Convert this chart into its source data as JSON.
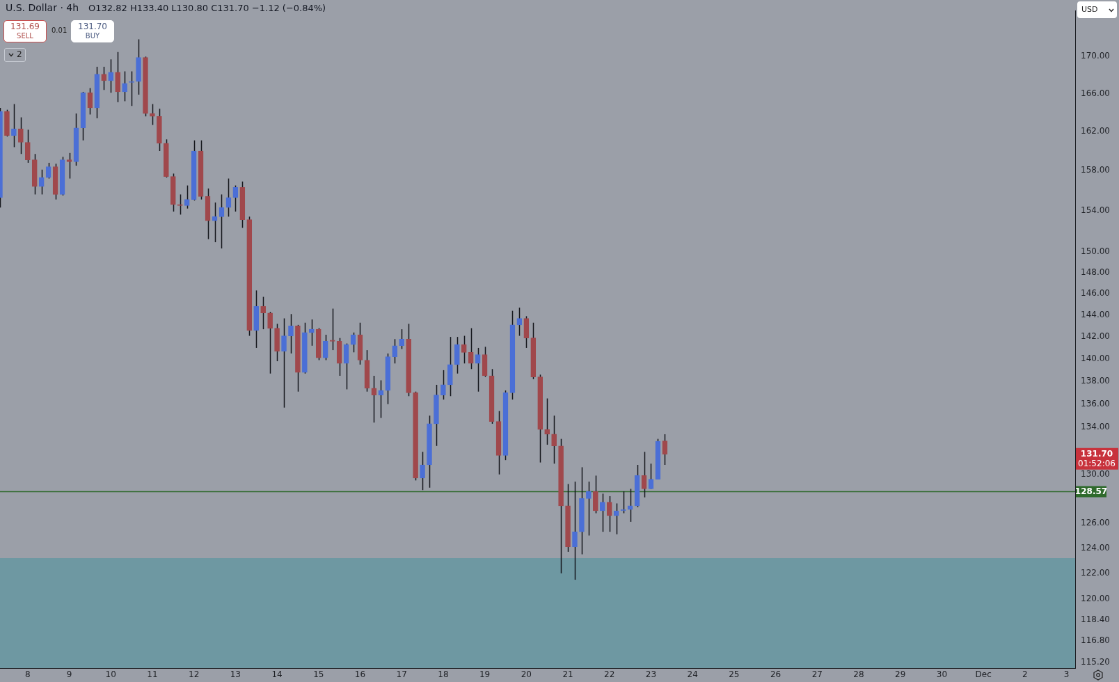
{
  "chart_data": {
    "type": "candlestick",
    "title": "U.S. Dollar · 4h",
    "subtitle": "O132.82 H133.40 L130.80 C131.70 −1.12 (−0.84%)",
    "x": [
      "--11-07T08:00",
      "--11-07T12:00",
      "--11-07T16:00",
      "--11-07T20:00",
      "--11-08T00:00",
      "--11-08T04:00",
      "--11-08T08:00",
      "--11-08T12:00",
      "--11-08T16:00",
      "--11-08T20:00",
      "--11-09T00:00",
      "--11-09T04:00",
      "--11-09T08:00",
      "--11-09T12:00",
      "--11-09T16:00",
      "--11-09T20:00",
      "--11-10T00:00",
      "--11-10T04:00",
      "--11-10T08:00",
      "--11-10T12:00",
      "--11-10T16:00",
      "--11-10T20:00",
      "--11-11T00:00",
      "--11-11T04:00",
      "--11-11T08:00",
      "--11-11T12:00",
      "--11-11T16:00",
      "--11-11T20:00",
      "--11-12T00:00",
      "--11-12T04:00",
      "--11-12T08:00",
      "--11-12T12:00",
      "--11-12T16:00",
      "--11-12T20:00",
      "--11-13T00:00",
      "--11-13T04:00",
      "--11-13T08:00",
      "--11-13T12:00",
      "--11-13T16:00",
      "--11-13T20:00",
      "--11-14T00:00",
      "--11-14T04:00",
      "--11-14T08:00",
      "--11-14T12:00",
      "--11-14T16:00",
      "--11-14T20:00",
      "--11-15T00:00",
      "--11-15T04:00",
      "--11-15T08:00",
      "--11-15T12:00",
      "--11-15T16:00",
      "--11-15T20:00",
      "--11-16T00:00",
      "--11-16T04:00",
      "--11-16T08:00",
      "--11-16T12:00",
      "--11-16T16:00",
      "--11-16T20:00",
      "--11-17T00:00",
      "--11-17T04:00",
      "--11-17T08:00",
      "--11-17T12:00",
      "--11-17T16:00",
      "--11-17T20:00",
      "--11-18T00:00",
      "--11-18T04:00",
      "--11-18T08:00",
      "--11-18T12:00",
      "--11-18T16:00",
      "--11-18T20:00",
      "--11-19T00:00",
      "--11-19T04:00",
      "--11-19T08:00",
      "--11-19T12:00",
      "--11-19T16:00",
      "--11-19T20:00",
      "--11-20T00:00",
      "--11-20T04:00",
      "--11-20T08:00",
      "--11-20T12:00",
      "--11-20T16:00",
      "--11-20T20:00",
      "--11-21T00:00",
      "--11-21T04:00",
      "--11-21T08:00",
      "--11-21T12:00",
      "--11-21T16:00",
      "--11-21T20:00",
      "--11-22T00:00",
      "--11-22T04:00",
      "--11-22T08:00",
      "--11-22T12:00",
      "--11-22T16:00",
      "--11-22T20:00",
      "--11-23T00:00",
      "--11-23T04:00",
      "--11-23T08:00"
    ],
    "ohlc": [
      [
        155.3,
        164.5,
        154.3,
        164.1
      ],
      [
        164.1,
        164.3,
        161.5,
        161.6
      ],
      [
        161.6,
        164.9,
        160.4,
        162.3
      ],
      [
        162.3,
        163.5,
        159.7,
        160.9
      ],
      [
        160.9,
        162.2,
        158.8,
        159.1
      ],
      [
        159.1,
        159.7,
        155.6,
        156.4
      ],
      [
        156.4,
        158.1,
        155.6,
        157.3
      ],
      [
        157.3,
        158.8,
        157.2,
        158.4
      ],
      [
        158.4,
        158.7,
        155.1,
        155.6
      ],
      [
        155.6,
        159.4,
        155.5,
        159.1
      ],
      [
        159.1,
        159.8,
        157.2,
        158.9
      ],
      [
        158.9,
        163.9,
        158.5,
        162.4
      ],
      [
        162.4,
        166.2,
        161.1,
        166.1
      ],
      [
        166.1,
        166.6,
        163.8,
        164.5
      ],
      [
        164.5,
        168.9,
        163.4,
        168.1
      ],
      [
        168.1,
        168.9,
        166.4,
        167.4
      ],
      [
        167.4,
        169.7,
        166.1,
        168.3
      ],
      [
        168.3,
        170.5,
        165.1,
        166.2
      ],
      [
        166.2,
        168.4,
        165.2,
        167.1
      ],
      [
        167.2,
        168.4,
        164.7,
        167.3
      ],
      [
        167.3,
        171.9,
        165.9,
        169.9
      ],
      [
        169.9,
        170.0,
        163.6,
        163.9
      ],
      [
        163.9,
        164.9,
        162.7,
        163.6
      ],
      [
        163.6,
        164.4,
        160.0,
        160.8
      ],
      [
        160.8,
        161.2,
        157.3,
        157.4
      ],
      [
        157.4,
        157.7,
        153.9,
        154.6
      ],
      [
        154.6,
        155.6,
        153.6,
        154.5
      ],
      [
        154.5,
        156.5,
        154.2,
        155.1
      ],
      [
        155.1,
        161.1,
        155.0,
        160.0
      ],
      [
        160.0,
        161.1,
        155.1,
        155.4
      ],
      [
        155.4,
        156.2,
        151.2,
        153.0
      ],
      [
        153.0,
        154.8,
        150.9,
        153.4
      ],
      [
        153.4,
        155.6,
        150.3,
        154.3
      ],
      [
        154.3,
        157.2,
        153.4,
        155.3
      ],
      [
        155.3,
        156.5,
        153.9,
        156.3
      ],
      [
        156.3,
        156.9,
        152.3,
        153.1
      ],
      [
        153.1,
        153.4,
        142.1,
        142.6
      ],
      [
        142.6,
        146.3,
        141.0,
        144.8
      ],
      [
        144.8,
        145.7,
        142.7,
        144.2
      ],
      [
        144.2,
        144.3,
        138.7,
        142.8
      ],
      [
        142.8,
        143.2,
        139.8,
        140.7
      ],
      [
        140.7,
        143.7,
        135.7,
        142.1
      ],
      [
        142.1,
        144.1,
        140.5,
        143.0
      ],
      [
        143.0,
        143.1,
        137.1,
        138.8
      ],
      [
        138.8,
        143.3,
        138.7,
        142.4
      ],
      [
        142.4,
        143.6,
        141.2,
        142.7
      ],
      [
        142.7,
        142.8,
        139.9,
        140.1
      ],
      [
        140.1,
        142.2,
        139.9,
        141.6
      ],
      [
        141.7,
        144.6,
        140.8,
        141.6
      ],
      [
        141.6,
        141.9,
        138.5,
        139.6
      ],
      [
        139.6,
        141.4,
        137.3,
        141.3
      ],
      [
        141.3,
        142.4,
        140.6,
        142.2
      ],
      [
        142.2,
        143.3,
        139.5,
        139.9
      ],
      [
        139.9,
        140.8,
        137.1,
        137.4
      ],
      [
        137.4,
        138.5,
        134.4,
        136.8
      ],
      [
        136.8,
        138.1,
        134.8,
        137.2
      ],
      [
        137.2,
        140.5,
        136.0,
        140.2
      ],
      [
        140.2,
        141.8,
        139.6,
        141.2
      ],
      [
        141.2,
        142.7,
        140.9,
        141.8
      ],
      [
        141.8,
        143.2,
        136.7,
        137.0
      ],
      [
        137.0,
        137.1,
        129.5,
        129.7
      ],
      [
        129.7,
        131.9,
        128.7,
        130.8
      ],
      [
        130.8,
        135.0,
        128.9,
        134.3
      ],
      [
        134.3,
        137.7,
        132.4,
        136.8
      ],
      [
        136.8,
        139.0,
        136.4,
        137.7
      ],
      [
        137.7,
        142.0,
        136.7,
        139.5
      ],
      [
        139.5,
        142.0,
        138.7,
        141.3
      ],
      [
        141.3,
        142.1,
        139.6,
        140.6
      ],
      [
        140.6,
        142.8,
        139.1,
        139.6
      ],
      [
        139.6,
        141.0,
        137.1,
        140.4
      ],
      [
        140.4,
        141.1,
        138.4,
        138.5
      ],
      [
        138.5,
        139.1,
        134.3,
        134.5
      ],
      [
        134.5,
        135.4,
        130.0,
        131.6
      ],
      [
        131.6,
        137.2,
        131.2,
        137.0
      ],
      [
        137.0,
        144.4,
        136.4,
        143.1
      ],
      [
        143.1,
        144.7,
        142.1,
        143.7
      ],
      [
        143.7,
        143.9,
        141.0,
        141.9
      ],
      [
        141.9,
        143.3,
        138.2,
        138.4
      ],
      [
        138.4,
        138.6,
        131.0,
        133.8
      ],
      [
        133.8,
        136.5,
        132.5,
        133.4
      ],
      [
        133.4,
        135.0,
        130.9,
        132.4
      ],
      [
        132.4,
        133.0,
        122.0,
        127.4
      ],
      [
        127.4,
        129.2,
        123.7,
        124.1
      ],
      [
        124.1,
        129.4,
        121.5,
        125.3
      ],
      [
        125.3,
        130.6,
        123.5,
        128.0
      ],
      [
        128.0,
        129.4,
        125.0,
        128.6
      ],
      [
        128.6,
        129.9,
        126.8,
        127.0
      ],
      [
        127.0,
        128.4,
        125.3,
        127.7
      ],
      [
        127.7,
        128.2,
        125.3,
        126.6
      ],
      [
        126.6,
        127.6,
        125.1,
        127.0
      ],
      [
        127.0,
        128.6,
        126.8,
        127.1
      ],
      [
        127.1,
        128.8,
        126.1,
        127.4
      ],
      [
        127.4,
        130.8,
        127.3,
        129.9
      ],
      [
        129.9,
        131.9,
        128.1,
        128.8
      ],
      [
        128.8,
        130.9,
        128.8,
        129.6
      ],
      [
        129.6,
        133.0,
        129.6,
        132.8
      ],
      [
        132.82,
        133.4,
        130.8,
        131.7
      ]
    ],
    "colors": [
      "#4b6fd6",
      "#a0484c",
      "#4b6fd6",
      "#a0484c",
      "#a0484c",
      "#a0484c",
      "#4b6fd6",
      "#4b6fd6",
      "#a0484c",
      "#4b6fd6",
      "#a0484c",
      "#4b6fd6",
      "#4b6fd6",
      "#a0484c",
      "#4b6fd6",
      "#a0484c",
      "#4b6fd6",
      "#a0484c",
      "#4b6fd6",
      "#4b6fd6",
      "#4b6fd6",
      "#a0484c",
      "#a0484c",
      "#a0484c",
      "#a0484c",
      "#a0484c",
      "#a0484c",
      "#4b6fd6",
      "#4b6fd6",
      "#a0484c",
      "#a0484c",
      "#4b6fd6",
      "#4b6fd6",
      "#4b6fd6",
      "#4b6fd6",
      "#a0484c",
      "#a0484c",
      "#4b6fd6",
      "#a0484c",
      "#a0484c",
      "#a0484c",
      "#4b6fd6",
      "#4b6fd6",
      "#a0484c",
      "#4b6fd6",
      "#4b6fd6",
      "#a0484c",
      "#4b6fd6",
      "#a0484c",
      "#a0484c",
      "#4b6fd6",
      "#4b6fd6",
      "#a0484c",
      "#a0484c",
      "#a0484c",
      "#4b6fd6",
      "#4b6fd6",
      "#4b6fd6",
      "#4b6fd6",
      "#a0484c",
      "#a0484c",
      "#4b6fd6",
      "#4b6fd6",
      "#4b6fd6",
      "#4b6fd6",
      "#4b6fd6",
      "#4b6fd6",
      "#a0484c",
      "#a0484c",
      "#4b6fd6",
      "#a0484c",
      "#a0484c",
      "#a0484c",
      "#4b6fd6",
      "#4b6fd6",
      "#4b6fd6",
      "#a0484c",
      "#a0484c",
      "#a0484c",
      "#a0484c",
      "#a0484c",
      "#a0484c",
      "#a0484c",
      "#4b6fd6",
      "#4b6fd6",
      "#4b6fd6",
      "#a0484c",
      "#4b6fd6",
      "#a0484c",
      "#4b6fd6",
      "#4b6fd6",
      "#4b6fd6",
      "#4b6fd6",
      "#a0484c",
      "#4b6fd6",
      "#4b6fd6",
      "#a0484c"
    ],
    "xlim": [
      "--11-07T08:00",
      "--12-03T05:00"
    ],
    "xticks": [
      {
        "value": "--11-08",
        "label": "8"
      },
      {
        "value": "--11-09",
        "label": "9"
      },
      {
        "value": "--11-10",
        "label": "10"
      },
      {
        "value": "--11-11",
        "label": "11"
      },
      {
        "value": "--11-12",
        "label": "12"
      },
      {
        "value": "--11-13",
        "label": "13"
      },
      {
        "value": "--11-14",
        "label": "14"
      },
      {
        "value": "--11-15",
        "label": "15"
      },
      {
        "value": "--11-16",
        "label": "16"
      },
      {
        "value": "--11-17",
        "label": "17"
      },
      {
        "value": "--11-18",
        "label": "18"
      },
      {
        "value": "--11-19",
        "label": "19"
      },
      {
        "value": "--11-20",
        "label": "20"
      },
      {
        "value": "--11-21",
        "label": "21"
      },
      {
        "value": "--11-22",
        "label": "22"
      },
      {
        "value": "--11-23",
        "label": "23"
      },
      {
        "value": "--11-24",
        "label": "24"
      },
      {
        "value": "--11-25",
        "label": "25"
      },
      {
        "value": "--11-26",
        "label": "26"
      },
      {
        "value": "--11-27",
        "label": "27"
      },
      {
        "value": "--11-28",
        "label": "28"
      },
      {
        "value": "--11-29",
        "label": "29"
      },
      {
        "value": "--11-30",
        "label": "30"
      },
      {
        "value": "--12-01",
        "label": "Dec"
      },
      {
        "value": "--12-02",
        "label": "2"
      },
      {
        "value": "--12-03",
        "label": "3"
      }
    ],
    "ylim": [
      114.8,
      175.1
    ],
    "yticks": [
      {
        "value": 115.2,
        "label": "115.20"
      },
      {
        "value": 116.8,
        "label": "116.80"
      },
      {
        "value": 118.4,
        "label": "118.40"
      },
      {
        "value": 120,
        "label": "120.00"
      },
      {
        "value": 122,
        "label": "122.00"
      },
      {
        "value": 124,
        "label": "124.00"
      },
      {
        "value": 126,
        "label": "126.00"
      },
      {
        "value": 130,
        "label": "130.00"
      },
      {
        "value": 134,
        "label": "134.00"
      },
      {
        "value": 136,
        "label": "136.00"
      },
      {
        "value": 138,
        "label": "138.00"
      },
      {
        "value": 140,
        "label": "140.00"
      },
      {
        "value": 142,
        "label": "142.00"
      },
      {
        "value": 144,
        "label": "144.00"
      },
      {
        "value": 146,
        "label": "146.00"
      },
      {
        "value": 148,
        "label": "148.00"
      },
      {
        "value": 150,
        "label": "150.00"
      },
      {
        "value": 154,
        "label": "154.00"
      },
      {
        "value": 158,
        "label": "158.00"
      },
      {
        "value": 162,
        "label": "162.00"
      },
      {
        "value": 166,
        "label": "166.00"
      },
      {
        "value": 170,
        "label": "170.00"
      }
    ],
    "log": true,
    "ref_lines": [
      {
        "axis": "y",
        "value": 128.57,
        "label": "128.57",
        "color": "#2f6a2c"
      }
    ],
    "bands": [
      {
        "axis": "y",
        "from": 114.8,
        "to": 123.2,
        "color": "#6e98a2"
      }
    ],
    "annotations": [
      "131.69",
      "SELL",
      "0.01",
      "131.70",
      "BUY",
      "2",
      "USD",
      "131.70",
      "01:52:06"
    ]
  }
}
